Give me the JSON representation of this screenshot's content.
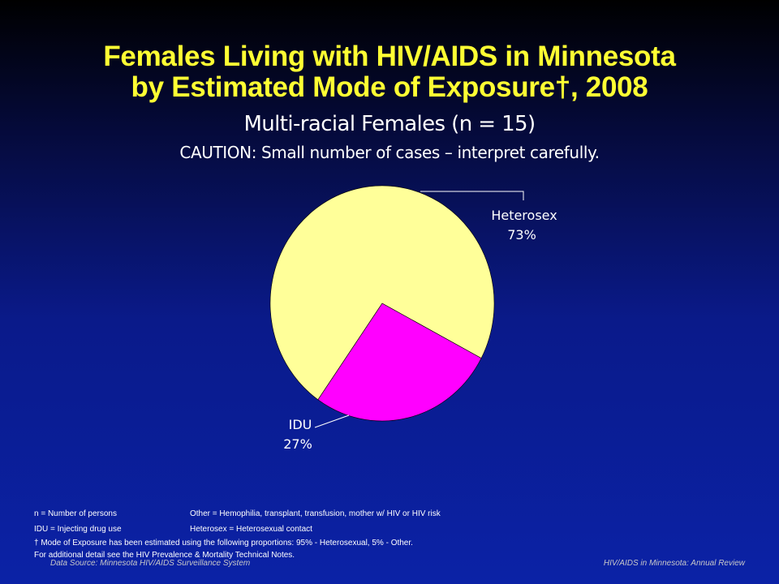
{
  "header": {
    "title_line_1": "Females Living with HIV/AIDS in Minnesota",
    "title_line_2": "by Estimated Mode of Exposure†, 2008",
    "subtitle": "Multi-racial Females (n = 15)",
    "caution": "CAUTION: Small number of cases – interpret carefully."
  },
  "chart_data": {
    "type": "pie",
    "title": "Multi-racial Females (n = 15)",
    "slices": [
      {
        "label": "Heterosex",
        "value": 73,
        "value_label": "73%",
        "color": "#ffff99"
      },
      {
        "label": "IDU",
        "value": 27,
        "value_label": "27%",
        "color": "#ff00ff"
      }
    ]
  },
  "footnotes": {
    "row1_left": "n = Number of persons",
    "row1_right": "Other = Hemophilia, transplant, transfusion, mother w/ HIV or HIV risk",
    "row2_left": "IDU = Injecting drug use",
    "row2_right": "Heterosex = Heterosexual contact",
    "row3": "† Mode of Exposure has been estimated using the following proportions: 95% - Heterosexual, 5% - Other.",
    "row4": "For additional detail see the HIV Prevalence & Mortality Technical Notes."
  },
  "footer": {
    "source": "Data Source:  Minnesota HIV/AIDS Surveillance  System",
    "report": "HIV/AIDS in Minnesota: Annual Review"
  },
  "colors": {
    "title": "#ffff33",
    "heterosex": "#ffff99",
    "idu": "#ff00ff"
  }
}
